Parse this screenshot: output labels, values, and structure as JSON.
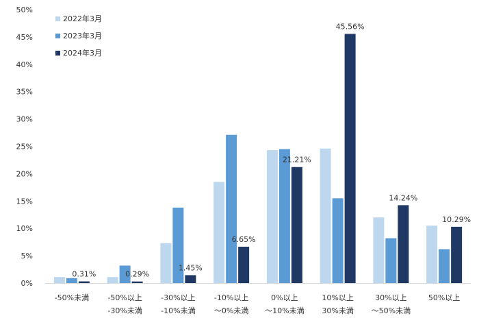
{
  "chart_data": {
    "type": "bar",
    "categories": [
      [
        "-50%未満",
        ""
      ],
      [
        "-50%以上",
        "-30%未満"
      ],
      [
        "-30%以上",
        "-10%未満"
      ],
      [
        "-10%以上",
        "～0%未満"
      ],
      [
        "0%以上",
        "～10%未満"
      ],
      [
        "10%以上",
        "30%未満"
      ],
      [
        "30%以上",
        "～50%未満"
      ],
      [
        "50%以上",
        ""
      ]
    ],
    "series": [
      {
        "name": "2022年3月",
        "color": "#bdd7ee",
        "values": [
          1.1,
          1.1,
          7.3,
          18.5,
          24.3,
          24.6,
          12.0,
          10.5
        ]
      },
      {
        "name": "2023年3月",
        "color": "#5b9bd5",
        "values": [
          0.9,
          3.2,
          13.8,
          27.1,
          24.5,
          15.5,
          8.2,
          6.2
        ]
      },
      {
        "name": "2024年3月",
        "color": "#1f3864",
        "values": [
          0.31,
          0.29,
          1.45,
          6.65,
          21.21,
          45.56,
          14.24,
          10.29
        ]
      }
    ],
    "data_labels": [
      "0.31%",
      "0.29%",
      "1.45%",
      "6.65%",
      "21.21%",
      "45.56%",
      "14.24%",
      "10.29%"
    ],
    "yticks": [
      "0%",
      "5%",
      "10%",
      "15%",
      "20%",
      "25%",
      "30%",
      "35%",
      "40%",
      "45%",
      "50%"
    ],
    "ylim": [
      0,
      50
    ],
    "grid": false,
    "legend_position": "top-left"
  }
}
